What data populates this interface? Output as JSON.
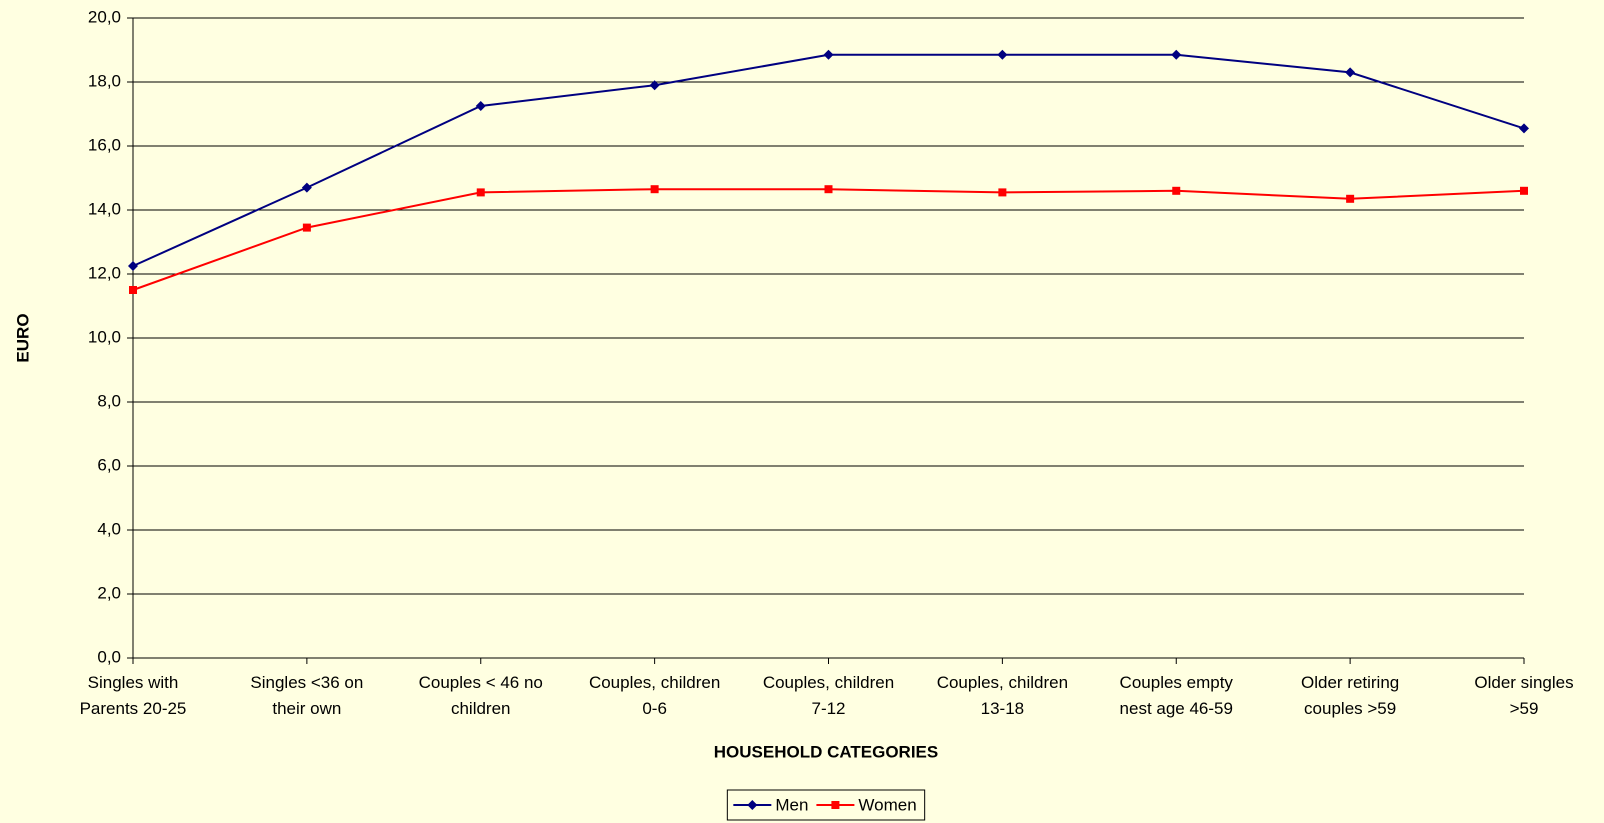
{
  "chart_data": {
    "type": "line",
    "x_label": "HOUSEHOLD CATEGORIES",
    "y_label": "EURO",
    "categories": [
      "Singles with\nParents 20-25",
      "Singles  <36 on\ntheir own",
      "Couples < 46 no\nchildren",
      "Couples, children\n0-6",
      "Couples, children\n7-12",
      "Couples, children\n13-18",
      "Couples empty\nnest age 46-59",
      "Older retiring\ncouples >59",
      "Older singles\n>59"
    ],
    "series": [
      {
        "name": "Men",
        "color": "#000080",
        "marker": "diamond",
        "values": [
          12.25,
          14.7,
          17.25,
          17.9,
          18.85,
          18.85,
          18.85,
          18.3,
          16.55
        ]
      },
      {
        "name": "Women",
        "color": "#ff0000",
        "marker": "square",
        "values": [
          11.5,
          13.45,
          14.55,
          14.65,
          14.65,
          14.55,
          14.6,
          14.35,
          14.6
        ]
      }
    ],
    "ylim": [
      0,
      20
    ],
    "yticks": [
      {
        "value": 0,
        "label": "0,0"
      },
      {
        "value": 2,
        "label": "2,0"
      },
      {
        "value": 4,
        "label": "4,0"
      },
      {
        "value": 6,
        "label": "6,0"
      },
      {
        "value": 8,
        "label": "8,0"
      },
      {
        "value": 10,
        "label": "10,0"
      },
      {
        "value": 12,
        "label": "12,0"
      },
      {
        "value": 14,
        "label": "14,0"
      },
      {
        "value": 16,
        "label": "16,0"
      },
      {
        "value": 18,
        "label": "18,0"
      },
      {
        "value": 20,
        "label": "20,0"
      }
    ],
    "grid": true,
    "legend": "bottom"
  }
}
